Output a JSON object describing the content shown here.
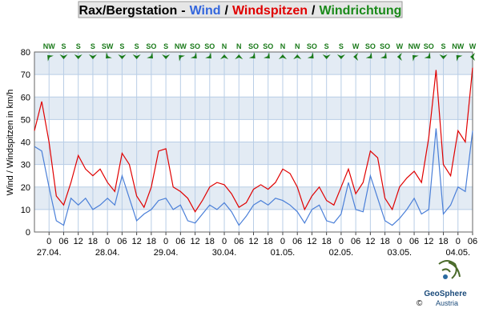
{
  "chart_data": {
    "type": "line",
    "title": {
      "station": "Rax/Bergstation",
      "sep1": "-",
      "sep2": "/",
      "sep3": "/",
      "direction_title": "Windrichtung"
    },
    "ylabel": "Wind / Windspitzen in km/h",
    "ylim": [
      0,
      80
    ],
    "yticks": [
      0,
      10,
      20,
      30,
      40,
      50,
      60,
      70,
      80
    ],
    "grid": true,
    "xtick_labels": [
      "0",
      "06",
      "12",
      "18",
      "0",
      "06",
      "12",
      "18",
      "0",
      "06",
      "12",
      "18",
      "0",
      "06",
      "12",
      "18",
      "0",
      "06",
      "12",
      "18",
      "0",
      "06",
      "12",
      "18",
      "0",
      "06",
      "12",
      "18",
      "0",
      "06"
    ],
    "date_labels": [
      "27.04.",
      "28.04.",
      "29.04.",
      "30.04.",
      "01.05.",
      "02.05.",
      "03.05.",
      "04.05."
    ],
    "directions": [
      "NW",
      "S",
      "S",
      "S",
      "SW",
      "S",
      "S",
      "SO",
      "S",
      "NW",
      "SO",
      "SO",
      "N",
      "N",
      "SO",
      "SO",
      "N",
      "N",
      "SO",
      "S",
      "S",
      "W",
      "SO",
      "SO",
      "W",
      "NW",
      "SO",
      "S",
      "NW",
      "W"
    ],
    "direction_color": "#1a7a1a",
    "series": [
      {
        "name": "Wind",
        "color": "#4a7fd8",
        "values": [
          38,
          36,
          20,
          5,
          3,
          15,
          12,
          15,
          10,
          12,
          15,
          12,
          25,
          15,
          5,
          8,
          10,
          14,
          15,
          10,
          12,
          5,
          4,
          8,
          12,
          10,
          13,
          9,
          3,
          7,
          12,
          14,
          12,
          15,
          14,
          12,
          9,
          4,
          10,
          12,
          5,
          4,
          8,
          22,
          10,
          9,
          25,
          15,
          5,
          3,
          6,
          10,
          15,
          8,
          10,
          46,
          8,
          12,
          20,
          18,
          45
        ]
      },
      {
        "name": "Windspitzen",
        "color": "#e00000",
        "values": [
          45,
          58,
          40,
          16,
          12,
          22,
          34,
          28,
          25,
          28,
          22,
          18,
          35,
          30,
          16,
          11,
          20,
          36,
          37,
          20,
          18,
          15,
          9,
          14,
          20,
          22,
          21,
          17,
          11,
          13,
          19,
          21,
          19,
          22,
          28,
          26,
          20,
          10,
          16,
          20,
          14,
          12,
          20,
          28,
          17,
          22,
          36,
          33,
          15,
          10,
          20,
          24,
          27,
          22,
          42,
          72,
          30,
          25,
          45,
          40,
          73
        ]
      }
    ],
    "logo": {
      "name": "GeoSphere",
      "sub": "Austria",
      "copyright": "©"
    }
  }
}
